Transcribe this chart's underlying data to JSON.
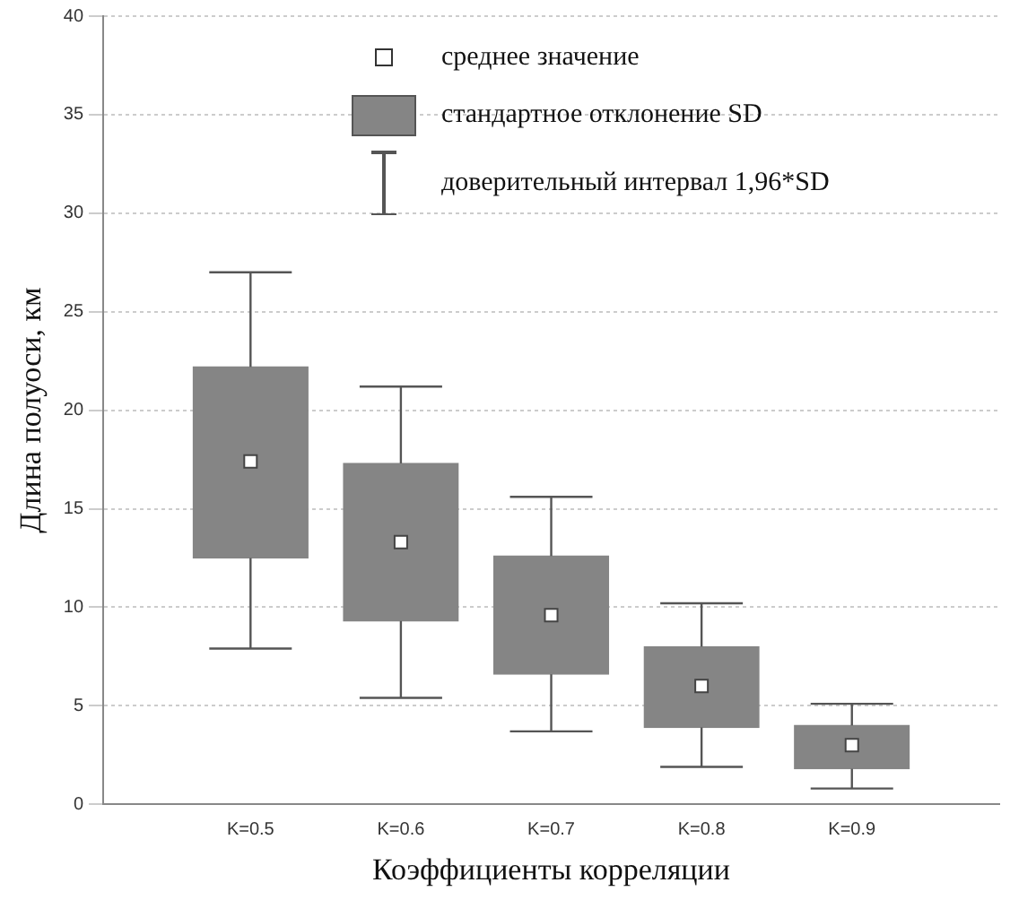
{
  "chart_data": {
    "type": "box",
    "xlabel": "Коэффициенты корреляции",
    "ylabel": "Длина полуоси, км",
    "categories": [
      "K=0.5",
      "K=0.6",
      "K=0.7",
      "K=0.8",
      "K=0.9"
    ],
    "boxes": [
      {
        "low": 7.9,
        "q1": 12.5,
        "q3": 22.2,
        "high": 27,
        "mean": 17.4
      },
      {
        "low": 5.4,
        "q1": 9.3,
        "q3": 17.3,
        "high": 21.2,
        "mean": 13.3
      },
      {
        "low": 3.7,
        "q1": 6.6,
        "q3": 12.6,
        "high": 15.6,
        "mean": 9.6
      },
      {
        "low": 1.9,
        "q1": 3.9,
        "q3": 8.0,
        "high": 10.2,
        "mean": 6.0
      },
      {
        "low": 0.8,
        "q1": 1.8,
        "q3": 4.0,
        "high": 5.1,
        "mean": 3.0
      }
    ],
    "color": "#858585",
    "ylim": [
      0,
      40
    ],
    "yticks": [
      0,
      5,
      10,
      15,
      20,
      25,
      30,
      35,
      40
    ],
    "grid": "y",
    "annotations": [
      "среднее значение",
      "стандартное отклонение SD",
      "доверительный интервал 1,96*SD"
    ]
  }
}
